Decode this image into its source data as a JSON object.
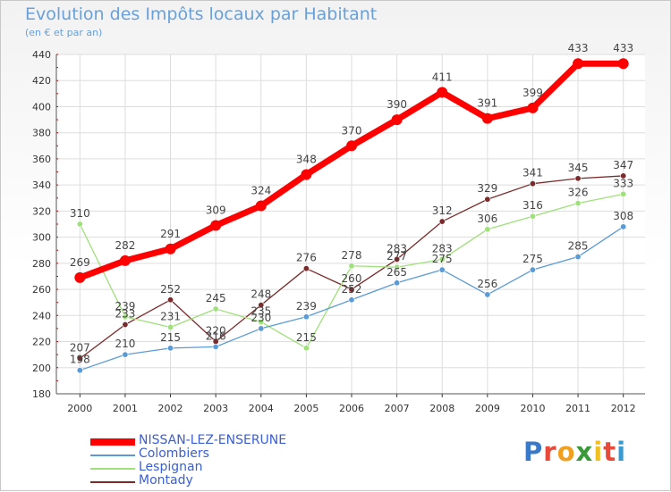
{
  "header": {
    "title": "Evolution des Impôts locaux par Habitant",
    "subtitle": "(en € et par an)"
  },
  "logo": {
    "letters": [
      {
        "char": "P",
        "color": "#3a78c8"
      },
      {
        "char": "r",
        "color": "#e84a3a"
      },
      {
        "char": "o",
        "color": "#f0a020"
      },
      {
        "char": "x",
        "color": "#3a9a3a"
      },
      {
        "char": "i",
        "color": "#f0c020"
      },
      {
        "char": "t",
        "color": "#e84a3a"
      },
      {
        "char": "i",
        "color": "#3a9ad0"
      }
    ]
  },
  "chart_data": {
    "type": "line",
    "title": "Evolution des Impôts locaux par Habitant",
    "subtitle": "(en € et par an)",
    "x": [
      "2000",
      "2001",
      "2002",
      "2003",
      "2004",
      "2005",
      "2006",
      "2007",
      "2008",
      "2009",
      "2010",
      "2011",
      "2012"
    ],
    "ylim": [
      180,
      440
    ],
    "yticks": [
      180,
      200,
      220,
      240,
      260,
      280,
      300,
      320,
      340,
      360,
      380,
      400,
      420,
      440
    ],
    "grid": true,
    "legend_position": "bottom-left",
    "series": [
      {
        "name": "NISSAN-LEZ-ENSERUNE",
        "color": "#ff0000",
        "values": [
          269,
          282,
          291,
          309,
          324,
          348,
          370,
          390,
          411,
          391,
          399,
          433,
          433
        ]
      },
      {
        "name": "Colombiers",
        "color": "#5b9bd5",
        "values": [
          198,
          210,
          215,
          216,
          230,
          239,
          252,
          265,
          275,
          256,
          275,
          285,
          308
        ]
      },
      {
        "name": "Lespignan",
        "color": "#9ee07a",
        "values": [
          310,
          239,
          231,
          245,
          235,
          215,
          278,
          277,
          283,
          306,
          316,
          326,
          333
        ]
      },
      {
        "name": "Montady",
        "color": "#7a2a2a",
        "values": [
          207,
          233,
          252,
          220,
          248,
          276,
          260,
          283,
          312,
          329,
          341,
          345,
          347
        ]
      }
    ],
    "point_labels": [
      {
        "series": 0,
        "labels": [
          "269",
          "282",
          "291",
          "309",
          "324",
          "348",
          "370",
          "390",
          "411",
          "391",
          "399",
          "433",
          "433"
        ]
      },
      {
        "series": 1,
        "labels": [
          "198",
          "210",
          "215",
          "216",
          "230",
          "239",
          "252",
          "265",
          "275",
          "256",
          "275",
          "285",
          "308"
        ]
      },
      {
        "series": 2,
        "labels": [
          "310",
          "239",
          "231",
          "245",
          "235",
          "215",
          "278",
          "277",
          "283",
          "306",
          "316",
          "326",
          "333"
        ]
      },
      {
        "series": 3,
        "labels": [
          "207",
          "233",
          "252",
          "220",
          "248",
          "276",
          "260",
          "283",
          "312",
          "329",
          "341",
          "345",
          "347"
        ]
      }
    ]
  }
}
